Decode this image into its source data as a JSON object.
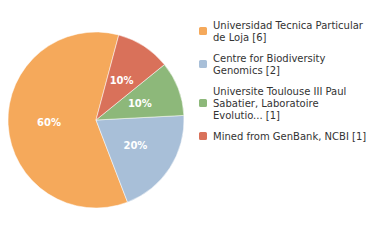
{
  "chart_data": {
    "type": "pie",
    "categories": [
      "Universidad Tecnica Particular\nde Loja [6]",
      "Centre for Biodiversity\nGenomics [2]",
      "Universite Toulouse III Paul\nSabatier, Laboratoire\nEvolutio... [1]",
      "Mined from GenBank, NCBI [1]"
    ],
    "values": [
      60,
      20,
      10,
      10
    ],
    "value_labels": [
      "60%",
      "20%",
      "10%",
      "10%"
    ],
    "data_labels": true,
    "colors": [
      "#F5A95B",
      "#A8BFD8",
      "#8DB87A",
      "#D9715A"
    ],
    "legend": "right"
  }
}
